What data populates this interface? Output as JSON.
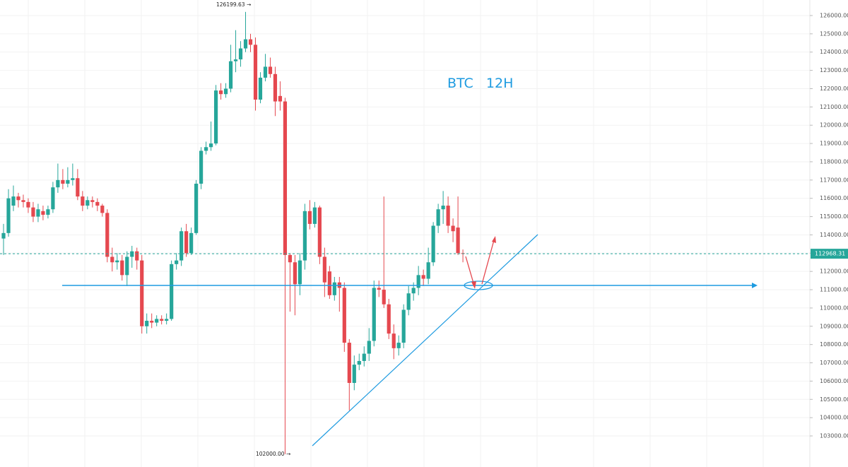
{
  "chart_data": {
    "type": "candlestick",
    "title": "BTC   12H",
    "up_color": "#26a69a",
    "down_color": "#e5484f",
    "ylim": [
      101300,
      126850
    ],
    "yticks": [
      {
        "value": 103000,
        "label": "103000.00"
      },
      {
        "value": 104000,
        "label": "104000.00"
      },
      {
        "value": 105000,
        "label": "105000.00"
      },
      {
        "value": 106000,
        "label": "106000.00"
      },
      {
        "value": 107000,
        "label": "107000.00"
      },
      {
        "value": 108000,
        "label": "108000.00"
      },
      {
        "value": 109000,
        "label": "109000.00"
      },
      {
        "value": 110000,
        "label": "110000.00"
      },
      {
        "value": 111000,
        "label": "111000.00"
      },
      {
        "value": 112000,
        "label": "112000.00"
      },
      {
        "value": 113000,
        "label": "113000.00"
      },
      {
        "value": 114000,
        "label": "114000.00"
      },
      {
        "value": 115000,
        "label": "115000.00"
      },
      {
        "value": 116000,
        "label": "116000.00"
      },
      {
        "value": 117000,
        "label": "117000.00"
      },
      {
        "value": 118000,
        "label": "118000.00"
      },
      {
        "value": 119000,
        "label": "119000.00"
      },
      {
        "value": 120000,
        "label": "120000.00"
      },
      {
        "value": 121000,
        "label": "121000.00"
      },
      {
        "value": 122000,
        "label": "122000.00"
      },
      {
        "value": 123000,
        "label": "123000.00"
      },
      {
        "value": 124000,
        "label": "124000.00"
      },
      {
        "value": 125000,
        "label": "125000.00"
      },
      {
        "value": 126000,
        "label": "126000.00"
      }
    ],
    "grid": true,
    "last_price": {
      "value": 112968.31,
      "label": "112968.31"
    },
    "high_note": {
      "value": 126199.63,
      "label": "126199.63 →"
    },
    "low_note": {
      "value": 102000,
      "label": "102000.00 →"
    },
    "ohlc": [
      [
        113800,
        114600,
        112900,
        114100
      ],
      [
        114100,
        116500,
        113900,
        116000
      ],
      [
        115600,
        116700,
        115300,
        116100
      ],
      [
        116100,
        116300,
        115500,
        115900
      ],
      [
        115900,
        116200,
        115500,
        115800
      ],
      [
        115800,
        116000,
        115200,
        115500
      ],
      [
        115500,
        115800,
        114700,
        115000
      ],
      [
        115000,
        115700,
        114700,
        115400
      ],
      [
        115300,
        115600,
        114800,
        115100
      ],
      [
        115100,
        115600,
        114900,
        115400
      ],
      [
        115400,
        116900,
        115200,
        116600
      ],
      [
        116600,
        117900,
        116300,
        117000
      ],
      [
        117000,
        117600,
        116500,
        116800
      ],
      [
        116800,
        117700,
        116600,
        117000
      ],
      [
        117000,
        117900,
        116700,
        117100
      ],
      [
        117100,
        117600,
        115900,
        116100
      ],
      [
        116100,
        116400,
        115300,
        115600
      ],
      [
        115600,
        116100,
        115400,
        115900
      ],
      [
        115900,
        116100,
        115500,
        115800
      ],
      [
        115800,
        116000,
        115300,
        115600
      ],
      [
        115600,
        115700,
        115000,
        115200
      ],
      [
        115200,
        115400,
        112500,
        112800
      ],
      [
        112800,
        113300,
        112000,
        112500
      ],
      [
        112500,
        113000,
        112100,
        112600
      ],
      [
        112600,
        112900,
        111500,
        111800
      ],
      [
        111800,
        113100,
        111200,
        112800
      ],
      [
        112800,
        113400,
        112200,
        113100
      ],
      [
        113100,
        113300,
        112100,
        112600
      ],
      [
        112600,
        112900,
        108600,
        109000
      ],
      [
        109000,
        109700,
        108600,
        109300
      ],
      [
        109300,
        109700,
        108900,
        109200
      ],
      [
        109200,
        109600,
        109000,
        109400
      ],
      [
        109400,
        109600,
        109100,
        109300
      ],
      [
        109300,
        109700,
        109100,
        109400
      ],
      [
        109400,
        112600,
        109300,
        112400
      ],
      [
        112400,
        113000,
        112100,
        112600
      ],
      [
        112600,
        114400,
        112300,
        114200
      ],
      [
        114200,
        114600,
        112800,
        113000
      ],
      [
        113000,
        114400,
        112900,
        114100
      ],
      [
        114100,
        117000,
        114000,
        116800
      ],
      [
        116800,
        118800,
        116500,
        118600
      ],
      [
        118600,
        119100,
        118400,
        118800
      ],
      [
        118800,
        120200,
        118600,
        119000
      ],
      [
        119000,
        122200,
        118900,
        121900
      ],
      [
        121900,
        122300,
        121400,
        121700
      ],
      [
        121700,
        122300,
        121500,
        122000
      ],
      [
        122000,
        124400,
        121800,
        123500
      ],
      [
        123500,
        125200,
        122900,
        123600
      ],
      [
        123600,
        124600,
        123200,
        124200
      ],
      [
        124200,
        126199.63,
        124000,
        124700
      ],
      [
        124700,
        125000,
        124000,
        124400
      ],
      [
        124400,
        124800,
        120800,
        121400
      ],
      [
        121400,
        122900,
        121200,
        122600
      ],
      [
        122600,
        123900,
        122400,
        123200
      ],
      [
        123200,
        123700,
        122600,
        122800
      ],
      [
        122800,
        123200,
        120500,
        121300
      ],
      [
        121600,
        122400,
        120800,
        121300
      ],
      [
        121300,
        121500,
        102000,
        112900
      ],
      [
        112900,
        113000,
        109800,
        112500
      ],
      [
        112500,
        112900,
        109600,
        111300
      ],
      [
        111300,
        113000,
        110700,
        112600
      ],
      [
        112600,
        115700,
        112100,
        115300
      ],
      [
        115300,
        115900,
        114300,
        114600
      ],
      [
        114600,
        115800,
        114400,
        115500
      ],
      [
        115500,
        115600,
        112400,
        112800
      ],
      [
        112800,
        113300,
        110600,
        111400
      ],
      [
        112000,
        112300,
        110500,
        110700
      ],
      [
        110700,
        111700,
        110400,
        111400
      ],
      [
        111400,
        111700,
        109800,
        111100
      ],
      [
        111100,
        111400,
        107600,
        108100
      ],
      [
        108100,
        108300,
        104400,
        105900
      ],
      [
        105900,
        107400,
        105500,
        106900
      ],
      [
        106900,
        107500,
        106600,
        107100
      ],
      [
        107100,
        107900,
        106800,
        107500
      ],
      [
        107500,
        108900,
        107100,
        108200
      ],
      [
        108200,
        111500,
        107900,
        111100
      ],
      [
        111100,
        111500,
        110600,
        111000
      ],
      [
        111000,
        116100,
        110000,
        110200
      ],
      [
        110200,
        110500,
        108300,
        108600
      ],
      [
        108600,
        109100,
        107200,
        107800
      ],
      [
        107800,
        108500,
        107400,
        108100
      ],
      [
        108100,
        110200,
        107800,
        109900
      ],
      [
        109900,
        111200,
        109600,
        110800
      ],
      [
        110800,
        111400,
        110400,
        111100
      ],
      [
        111100,
        112300,
        110700,
        111800
      ],
      [
        111800,
        112100,
        111200,
        111600
      ],
      [
        111600,
        113300,
        111300,
        112500
      ],
      [
        112500,
        114700,
        112300,
        114500
      ],
      [
        114500,
        115700,
        114100,
        115400
      ],
      [
        115400,
        116400,
        114600,
        115600
      ],
      [
        115600,
        116100,
        114100,
        114500
      ],
      [
        114500,
        114900,
        113600,
        114200
      ],
      [
        114400,
        116100,
        112900,
        113000
      ],
      [
        113000,
        113200,
        112500,
        112968.31
      ]
    ]
  }
}
